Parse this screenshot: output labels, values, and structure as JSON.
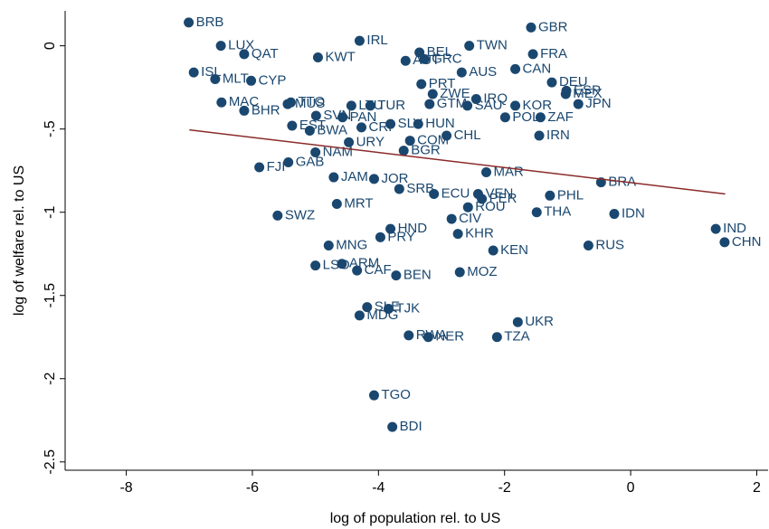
{
  "chart_data": {
    "type": "scatter",
    "xlabel": "log of population rel. to US",
    "ylabel": "log of welfare rel. to US",
    "xlim": [
      -8.97,
      2.18
    ],
    "ylim": [
      -2.55,
      0.21
    ],
    "xticks": [
      -8,
      -6,
      -4,
      -2,
      0,
      2
    ],
    "yticks": [
      0,
      {
        "value": -0.5,
        "label": "-.5"
      },
      -1,
      -1.5,
      -2,
      -2.5
    ],
    "series": [
      {
        "color": "#1a476f",
        "labels": [
          "BRB",
          "LUX",
          "QAT",
          "ISL",
          "MLT",
          "CYP",
          "IRL",
          "KWT",
          "BEL",
          "TWN",
          "GBR",
          "FRA",
          "AUT",
          "GRC",
          "DEU",
          "ESP",
          "MEX",
          "JPN",
          "CAN",
          "AUS",
          "ZAF",
          "POL",
          "KOR",
          "IRN",
          "SAU",
          "IRQ",
          "GTM",
          "ZWE",
          "PRT",
          "CHL",
          "HUN",
          "COM",
          "BGR",
          "URY",
          "CRI",
          "SLV",
          "TUR",
          "LTU",
          "SVN",
          "PAN",
          "MUS",
          "TTO",
          "BHR",
          "MAC",
          "EST",
          "BWA",
          "NAM",
          "GAB",
          "FJI",
          "JAM",
          "JOR",
          "SRB",
          "MRT",
          "SWZ",
          "ECU",
          "VEN",
          "PER",
          "ROU",
          "MAR",
          "PHL",
          "BRA",
          "THA",
          "IDN",
          "IND",
          "CHN",
          "RUS",
          "CIV",
          "HND",
          "PRY",
          "MNG",
          "KHR",
          "LSO",
          "ARM",
          "CAF",
          "BEN",
          "MOZ",
          "KEN",
          "UKR",
          "SLE",
          "TJK",
          "MDG",
          "RWA",
          "NER",
          "TZA",
          "TGO",
          "BDI"
        ],
        "x": [
          -7.01,
          -6.5,
          -6.13,
          -6.93,
          -6.59,
          -6.02,
          -4.3,
          -4.96,
          -3.35,
          -2.56,
          -1.58,
          -1.55,
          -3.57,
          -3.27,
          -1.25,
          -1.02,
          -1.03,
          -0.83,
          -1.83,
          -2.68,
          -1.43,
          -1.99,
          -1.83,
          -1.45,
          -2.59,
          -2.45,
          -3.19,
          -3.14,
          -3.32,
          -2.92,
          -3.37,
          -3.5,
          -3.6,
          -4.47,
          -4.27,
          -3.81,
          -4.13,
          -4.43,
          -4.99,
          -4.57,
          -5.44,
          -5.39,
          -6.13,
          -6.49,
          -5.37,
          -5.09,
          -5.0,
          -5.43,
          -5.89,
          -4.71,
          -4.07,
          -3.67,
          -4.66,
          -5.6,
          -3.12,
          -2.42,
          -2.36,
          -2.58,
          -2.29,
          -1.28,
          -0.47,
          -1.49,
          -0.26,
          1.35,
          1.49,
          -0.67,
          -2.84,
          -3.81,
          -3.97,
          -4.79,
          -2.74,
          -5.0,
          -4.58,
          -4.34,
          -3.72,
          -2.71,
          -2.18,
          -1.79,
          -4.18,
          -3.84,
          -4.3,
          -3.52,
          -3.21,
          -2.12,
          -4.07,
          -3.78
        ],
        "values": [
          0.14,
          0.0,
          -0.05,
          -0.16,
          -0.2,
          -0.21,
          0.03,
          -0.07,
          -0.04,
          0.0,
          0.11,
          -0.05,
          -0.09,
          -0.08,
          -0.22,
          -0.27,
          -0.29,
          -0.35,
          -0.14,
          -0.16,
          -0.43,
          -0.43,
          -0.36,
          -0.54,
          -0.36,
          -0.32,
          -0.35,
          -0.29,
          -0.23,
          -0.54,
          -0.47,
          -0.57,
          -0.63,
          -0.58,
          -0.49,
          -0.47,
          -0.36,
          -0.36,
          -0.42,
          -0.43,
          -0.35,
          -0.34,
          -0.39,
          -0.34,
          -0.48,
          -0.51,
          -0.64,
          -0.7,
          -0.73,
          -0.79,
          -0.8,
          -0.86,
          -0.95,
          -1.02,
          -0.89,
          -0.89,
          -0.92,
          -0.97,
          -0.76,
          -0.9,
          -0.82,
          -1.0,
          -1.01,
          -1.1,
          -1.18,
          -1.2,
          -1.04,
          -1.1,
          -1.15,
          -1.2,
          -1.13,
          -1.32,
          -1.31,
          -1.35,
          -1.38,
          -1.36,
          -1.23,
          -1.66,
          -1.57,
          -1.58,
          -1.62,
          -1.74,
          -1.75,
          -1.75,
          -2.1,
          -2.29
        ]
      },
      {
        "color": "#8b2a2a",
        "x": [
          -7,
          1.5
        ],
        "values": [
          -0.505,
          -0.89
        ]
      }
    ]
  }
}
